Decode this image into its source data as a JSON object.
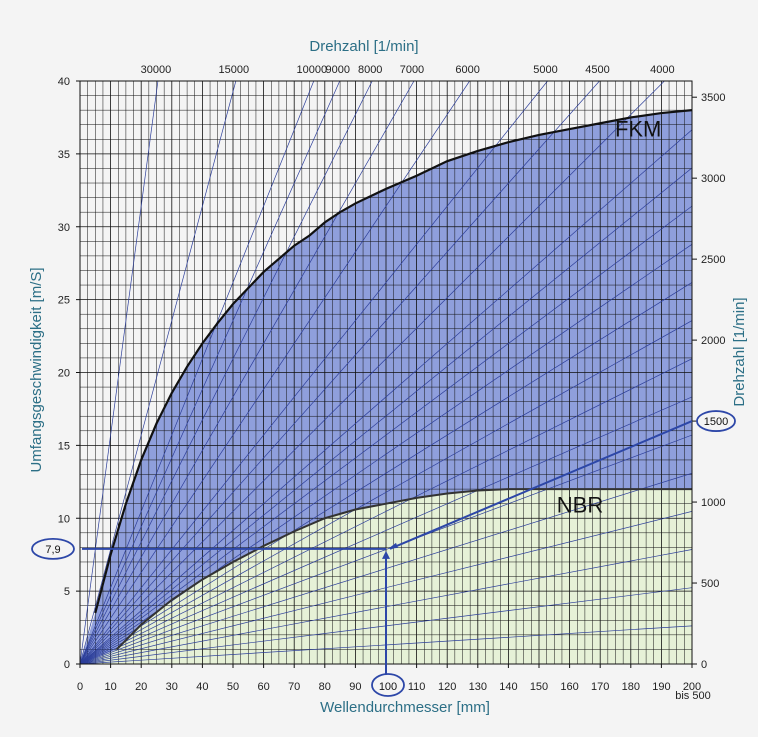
{
  "chart_data": {
    "type": "line",
    "title": "",
    "top_axis": {
      "label": "Drehzahl [1/min]",
      "ticks": [
        {
          "label": "30000",
          "rpm": 30000
        },
        {
          "label": "15000",
          "rpm": 15000
        },
        {
          "label": "10000",
          "rpm": 10000
        },
        {
          "label": "9000",
          "rpm": 9000
        },
        {
          "label": "8000",
          "rpm": 8000
        },
        {
          "label": "7000",
          "rpm": 7000
        },
        {
          "label": "6000",
          "rpm": 6000
        },
        {
          "label": "5000",
          "rpm": 5000
        },
        {
          "label": "4500",
          "rpm": 4500
        },
        {
          "label": "4000",
          "rpm": 4000
        }
      ]
    },
    "x_axis": {
      "label": "Wellendurchmesser [mm]",
      "range": [
        0,
        200
      ],
      "ticks": [
        0,
        10,
        20,
        30,
        40,
        50,
        60,
        70,
        80,
        90,
        100,
        110,
        120,
        130,
        140,
        150,
        160,
        170,
        180,
        190,
        200
      ],
      "extra_label": "bis 500"
    },
    "y_axis": {
      "label": "Umfangsgeschwindigkeit [m/S]",
      "range": [
        0,
        40
      ],
      "ticks": [
        0,
        5,
        10,
        15,
        20,
        25,
        30,
        35,
        40
      ]
    },
    "right_axis": {
      "label": "Drehzahl [1/min]",
      "ticks": [
        0,
        500,
        1000,
        1500,
        2000,
        2500,
        3000,
        3500
      ]
    },
    "rpm_lines": [
      30000,
      15000,
      10000,
      9000,
      8000,
      7000,
      6000,
      5000,
      4500,
      4000,
      3500,
      3250,
      3000,
      2750,
      2500,
      2250,
      2000,
      1750,
      1500,
      1250,
      1000,
      750,
      500,
      250
    ],
    "series": [
      {
        "name": "FKM",
        "color": "#8f9fdc",
        "points": [
          [
            5,
            3.5
          ],
          [
            10,
            7.5
          ],
          [
            15,
            11
          ],
          [
            20,
            14
          ],
          [
            25,
            16.5
          ],
          [
            30,
            18.6
          ],
          [
            35,
            20.4
          ],
          [
            40,
            22
          ],
          [
            45,
            23.4
          ],
          [
            50,
            24.7
          ],
          [
            55,
            25.8
          ],
          [
            60,
            26.9
          ],
          [
            65,
            27.8
          ],
          [
            70,
            28.7
          ],
          [
            75,
            29.4
          ],
          [
            80,
            30.3
          ],
          [
            85,
            31
          ],
          [
            90,
            31.6
          ],
          [
            95,
            32.1
          ],
          [
            100,
            32.6
          ],
          [
            110,
            33.5
          ],
          [
            120,
            34.5
          ],
          [
            130,
            35.2
          ],
          [
            140,
            35.8
          ],
          [
            150,
            36.3
          ],
          [
            160,
            36.7
          ],
          [
            170,
            37.1
          ],
          [
            180,
            37.5
          ],
          [
            190,
            37.8
          ],
          [
            200,
            38
          ]
        ]
      },
      {
        "name": "NBR",
        "color": "#e6f1d7",
        "points": [
          [
            12,
            1
          ],
          [
            20,
            2.7
          ],
          [
            30,
            4.4
          ],
          [
            40,
            5.8
          ],
          [
            50,
            7
          ],
          [
            60,
            8.1
          ],
          [
            70,
            9.1
          ],
          [
            80,
            10
          ],
          [
            90,
            10.6
          ],
          [
            100,
            11
          ],
          [
            110,
            11.4
          ],
          [
            120,
            11.7
          ],
          [
            130,
            11.9
          ],
          [
            140,
            12
          ],
          [
            200,
            12
          ]
        ]
      }
    ],
    "grid": true,
    "annotations": {
      "velocity_label": "7,9",
      "velocity_value": 7.9,
      "diameter_label": "100",
      "diameter_value": 100,
      "rpm_label": "1500",
      "rpm_value": 1500
    }
  }
}
